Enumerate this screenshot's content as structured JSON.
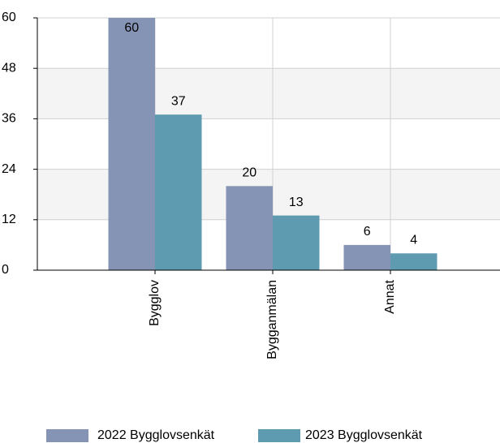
{
  "chart_data": {
    "type": "bar",
    "categories": [
      "Bygglov",
      "Bygganmälan",
      "Annat"
    ],
    "series": [
      {
        "name": "2022 Bygglovsenkät",
        "color": "#8593b5",
        "values": [
          60,
          20,
          6
        ]
      },
      {
        "name": "2023 Bygglovsenkät",
        "color": "#5f9bb0",
        "values": [
          37,
          13,
          4
        ]
      }
    ],
    "ylim": [
      0,
      60
    ],
    "yticks": [
      0,
      12,
      24,
      36,
      48,
      60
    ],
    "grid": true,
    "legend": "bottom"
  }
}
